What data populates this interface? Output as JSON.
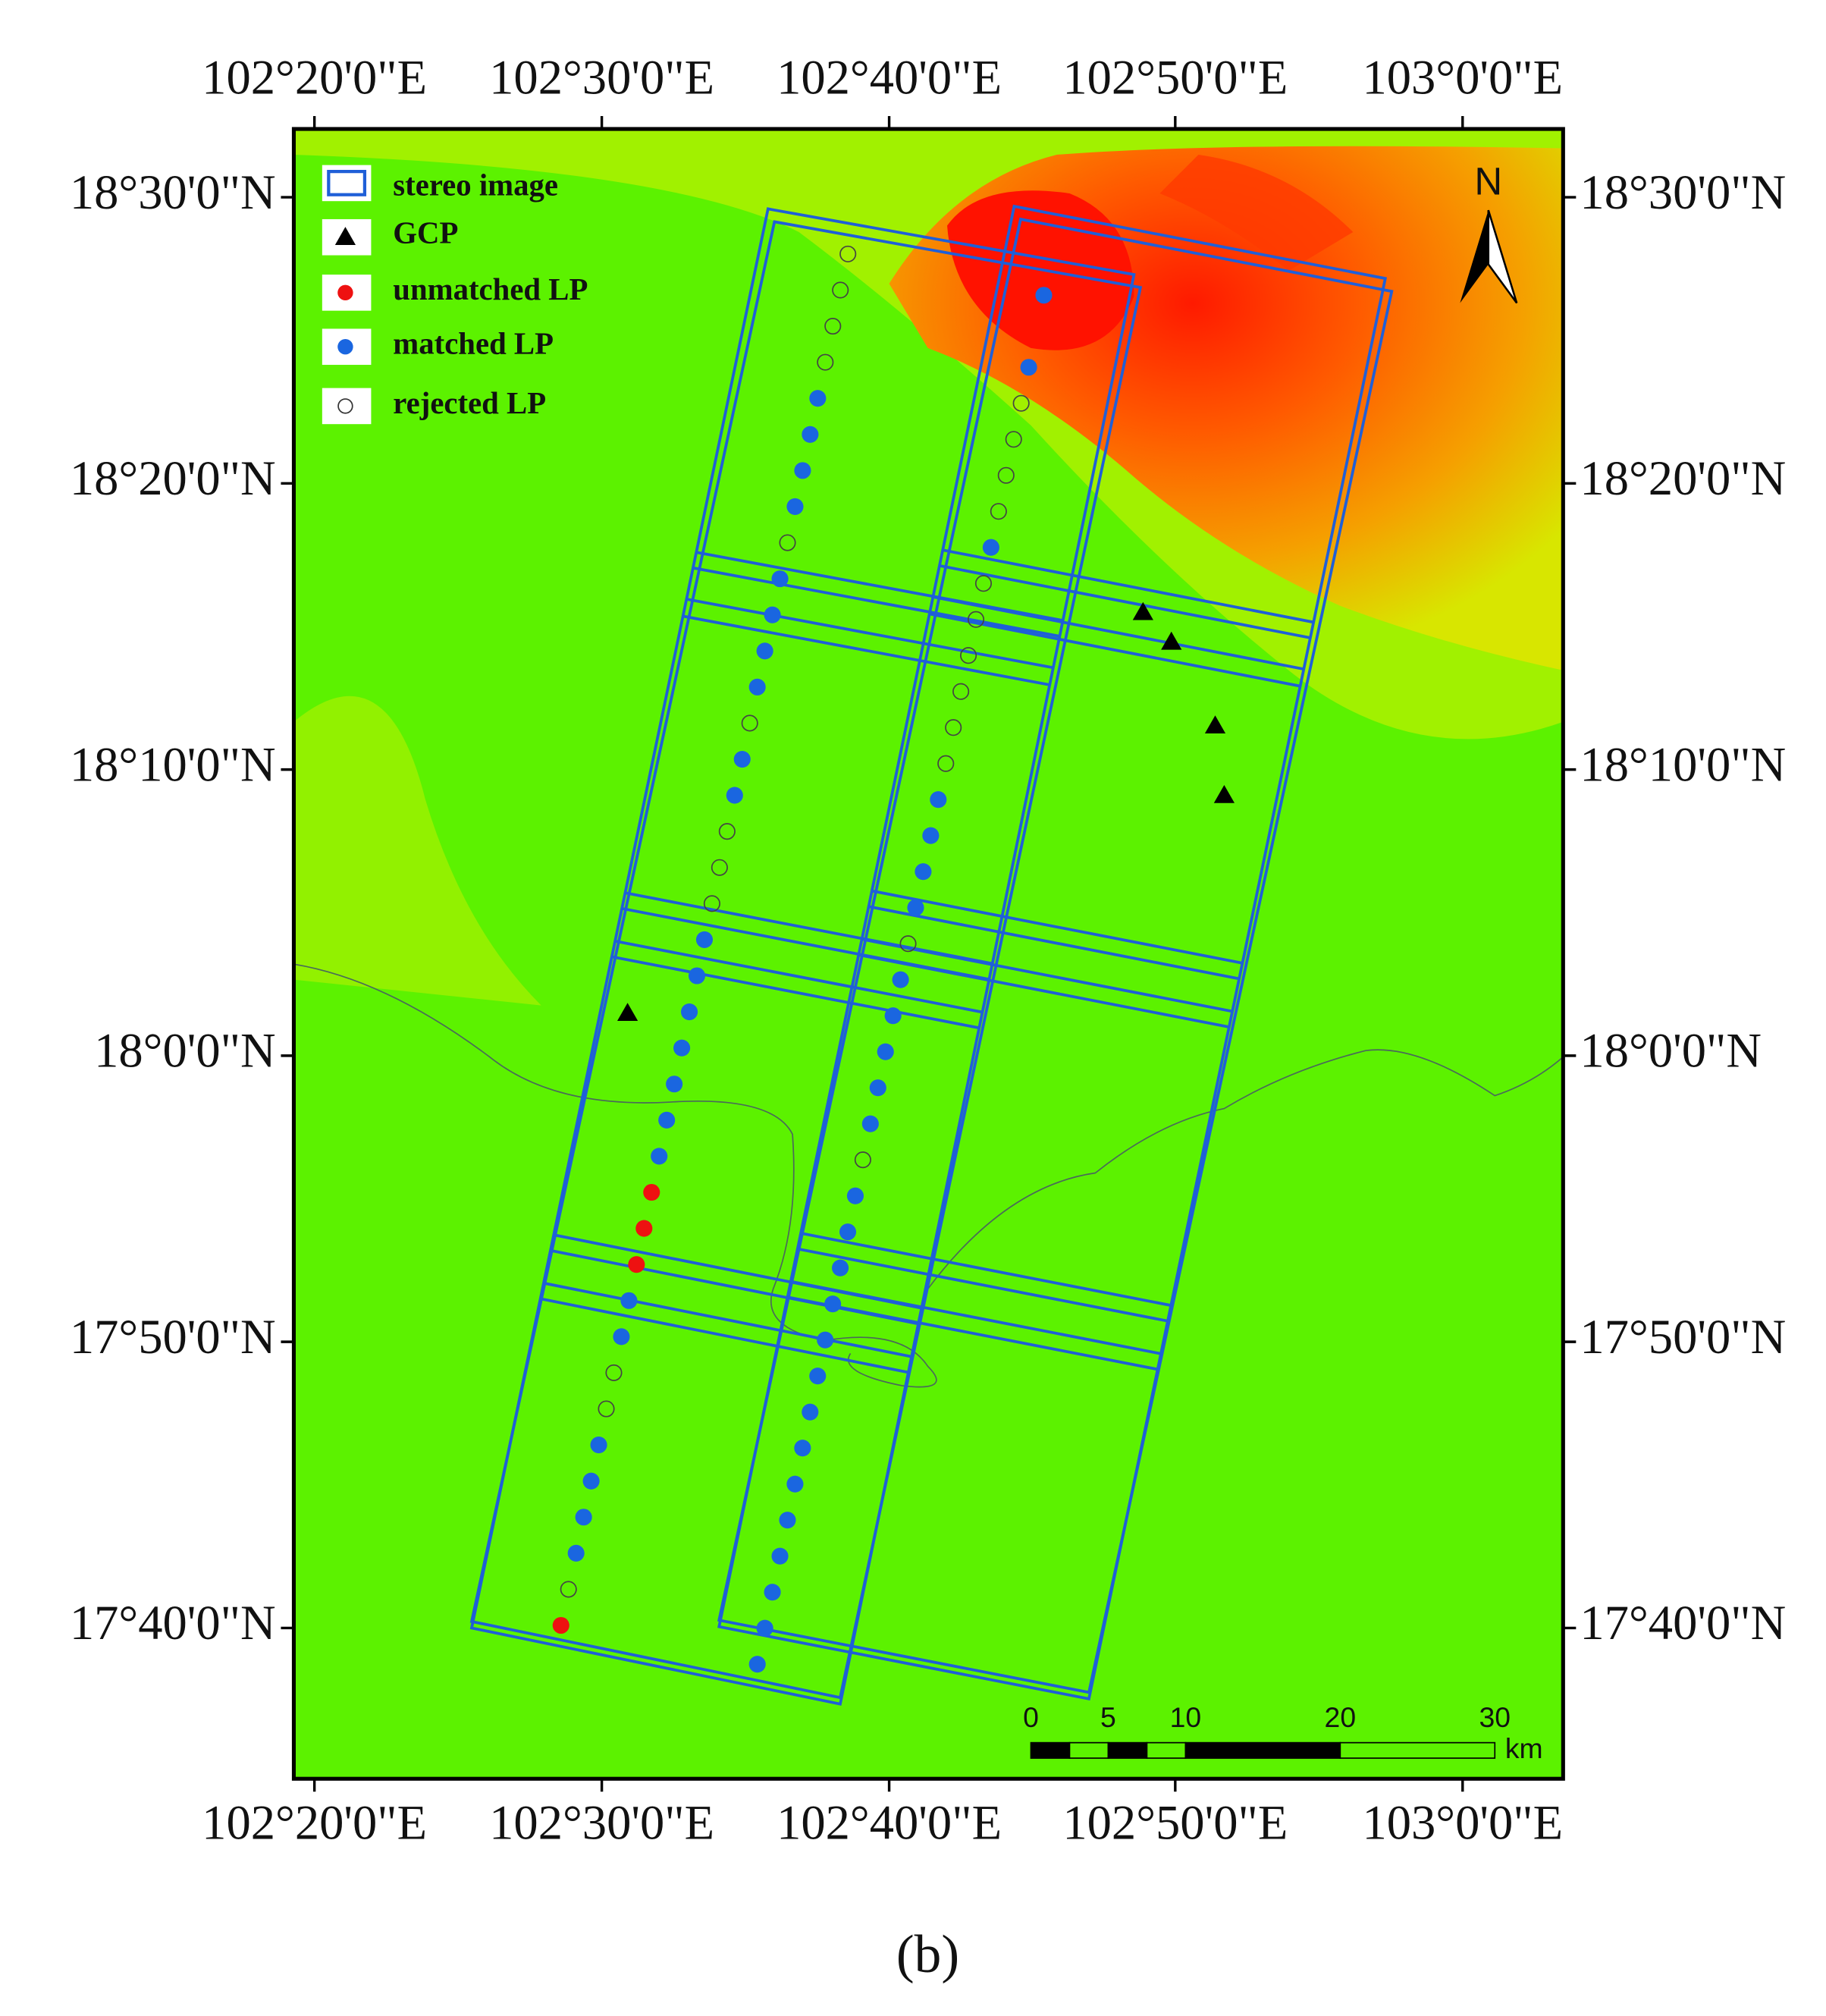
{
  "map": {
    "lon_labels": [
      "102°20'0\"E",
      "102°30'0\"E",
      "102°40'0\"E",
      "102°50'0\"E",
      "103°0'0\"E"
    ],
    "lat_labels": [
      "18°30'0\"N",
      "18°20'0\"N",
      "18°10'0\"N",
      "18°0'0\"N",
      "17°50'0\"N",
      "17°40'0\"N"
    ],
    "legend": [
      "stereo image",
      "GCP",
      "unmatched LP",
      "matched LP",
      "rejected LP"
    ],
    "north": "N",
    "scale_bar": {
      "ticks": [
        0,
        5,
        10,
        20,
        30
      ],
      "unit": "km"
    }
  },
  "caption": "(b)"
}
